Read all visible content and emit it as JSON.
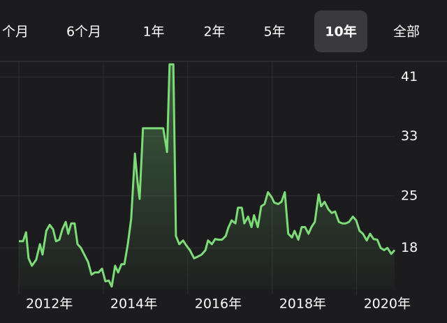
{
  "tabs": {
    "items": [
      "个月",
      "6个月",
      "1年",
      "2年",
      "5年",
      "10年",
      "全部"
    ],
    "selected": 5
  },
  "chart_data": {
    "type": "line",
    "x": [
      2012.0,
      2012.1,
      2012.17,
      2012.23,
      2012.31,
      2012.41,
      2012.5,
      2012.56,
      2012.65,
      2012.73,
      2012.81,
      2012.88,
      2012.96,
      2013.03,
      2013.11,
      2013.17,
      2013.24,
      2013.32,
      2013.39,
      2013.47,
      2013.55,
      2013.64,
      2013.72,
      2013.8,
      2013.89,
      2013.97,
      2014.05,
      2014.13,
      2014.2,
      2014.28,
      2014.35,
      2014.43,
      2014.5,
      2014.58,
      2014.66,
      2014.75,
      2014.81,
      2014.86,
      2014.94,
      2015.04,
      2015.14,
      2015.24,
      2015.34,
      2015.42,
      2015.51,
      2015.57,
      2015.66,
      2015.72,
      2015.8,
      2015.89,
      2015.97,
      2016.05,
      2016.15,
      2016.23,
      2016.33,
      2016.42,
      2016.48,
      2016.57,
      2016.65,
      2016.73,
      2016.81,
      2016.9,
      2016.96,
      2017.04,
      2017.13,
      2017.19,
      2017.28,
      2017.34,
      2017.43,
      2017.51,
      2017.57,
      2017.66,
      2017.74,
      2017.82,
      2017.9,
      2017.99,
      2018.05,
      2018.14,
      2018.22,
      2018.3,
      2018.38,
      2018.47,
      2018.53,
      2018.62,
      2018.7,
      2018.78,
      2018.86,
      2018.93,
      2019.01,
      2019.1,
      2019.16,
      2019.24,
      2019.33,
      2019.41,
      2019.49,
      2019.58,
      2019.66,
      2019.74,
      2019.82,
      2019.91,
      2019.99,
      2020.07,
      2020.15,
      2020.24,
      2020.32,
      2020.4,
      2020.49,
      2020.57,
      2020.65,
      2020.73,
      2020.82,
      2020.9
    ],
    "series": [
      {
        "color": "#7ddc78",
        "values": [
          18.9,
          18.9,
          20.1,
          16.6,
          15.6,
          16.4,
          18.5,
          17.1,
          20.3,
          21.1,
          20.5,
          18.9,
          19.1,
          20.5,
          21.5,
          19.9,
          21.3,
          21.3,
          18.5,
          18.0,
          17.1,
          16.1,
          14.4,
          14.7,
          14.7,
          15.2,
          13.5,
          13.6,
          12.8,
          15.6,
          14.7,
          15.8,
          15.8,
          18.5,
          21.9,
          30.7,
          26.9,
          24.6,
          34.1,
          34.1,
          34.1,
          34.1,
          34.1,
          34.1,
          30.9,
          42.7,
          42.7,
          19.6,
          18.5,
          19.0,
          18.3,
          17.7,
          16.6,
          16.8,
          17.1,
          17.7,
          19.0,
          18.5,
          19.2,
          19.1,
          19.1,
          19.6,
          20.7,
          21.7,
          21.3,
          23.4,
          23.4,
          21.3,
          22.2,
          20.8,
          22.4,
          20.8,
          23.6,
          23.9,
          25.5,
          24.8,
          24.1,
          23.9,
          24.2,
          25.5,
          19.9,
          19.4,
          20.3,
          19.1,
          20.8,
          20.8,
          19.9,
          20.8,
          21.5,
          25.2,
          23.6,
          24.2,
          23.2,
          22.7,
          22.9,
          21.5,
          21.3,
          21.3,
          21.5,
          22.2,
          21.7,
          20.3,
          19.9,
          19.0,
          19.9,
          19.2,
          19.1,
          18.0,
          17.7,
          18.0,
          17.2,
          17.7
        ]
      }
    ],
    "xlim": [
      2012,
      2020.9
    ],
    "xticks": [
      {
        "value": 2012,
        "label": "2012年"
      },
      {
        "value": 2014,
        "label": "2014年"
      },
      {
        "value": 2016,
        "label": "2016年"
      },
      {
        "value": 2018,
        "label": "2018年"
      },
      {
        "value": 2020,
        "label": "2020年"
      }
    ],
    "ylim": [
      12.4,
      43.1
    ],
    "yticks": [
      18,
      25,
      33,
      41
    ],
    "grid": true
  }
}
